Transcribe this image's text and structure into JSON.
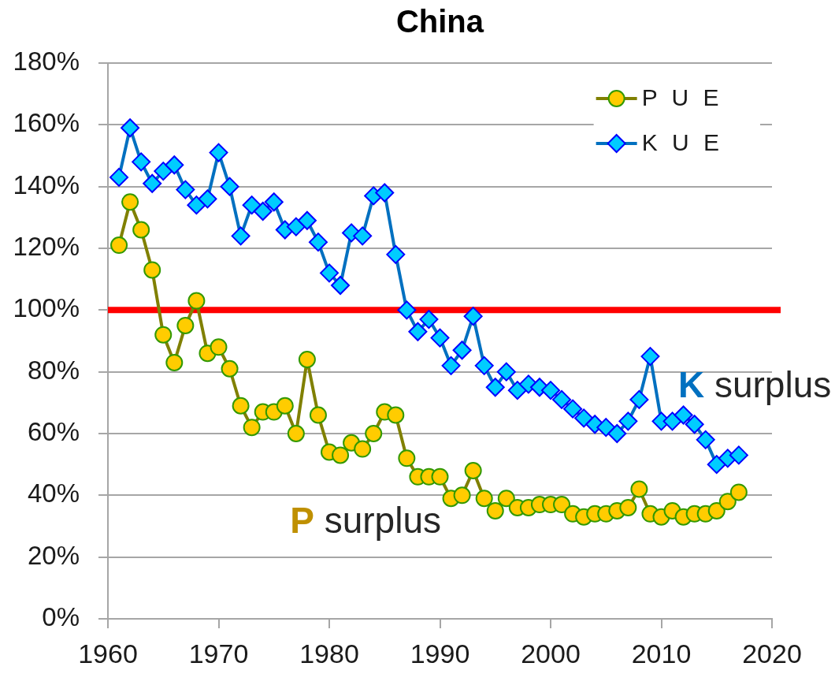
{
  "chart_data": {
    "type": "line",
    "title": "China",
    "x": [
      1961,
      1962,
      1963,
      1964,
      1965,
      1966,
      1967,
      1968,
      1969,
      1970,
      1971,
      1972,
      1973,
      1974,
      1975,
      1976,
      1977,
      1978,
      1979,
      1980,
      1981,
      1982,
      1983,
      1984,
      1985,
      1986,
      1987,
      1988,
      1989,
      1990,
      1991,
      1992,
      1993,
      1994,
      1995,
      1996,
      1997,
      1998,
      1999,
      2000,
      2001,
      2002,
      2003,
      2004,
      2005,
      2006,
      2007,
      2008,
      2009,
      2010,
      2011,
      2012,
      2013,
      2014,
      2015,
      2016,
      2017
    ],
    "series": [
      {
        "name": "P U E",
        "color": "#808000",
        "marker": "circle",
        "values": [
          121,
          135,
          126,
          113,
          92,
          83,
          95,
          103,
          86,
          88,
          81,
          69,
          62,
          67,
          67,
          69,
          60,
          84,
          66,
          54,
          53,
          57,
          55,
          60,
          67,
          66,
          52,
          46,
          46,
          46,
          39,
          40,
          48,
          39,
          35,
          39,
          36,
          36,
          37,
          37,
          37,
          34,
          33,
          34,
          34,
          35,
          36,
          42,
          34,
          33,
          35,
          33,
          34,
          34,
          35,
          38,
          41
        ]
      },
      {
        "name": "K U E",
        "color": "#0070c0",
        "marker": "diamond",
        "values": [
          143,
          159,
          148,
          141,
          145,
          147,
          139,
          134,
          136,
          151,
          140,
          124,
          134,
          132,
          135,
          126,
          127,
          129,
          122,
          112,
          108,
          125,
          124,
          137,
          138,
          118,
          100,
          93,
          97,
          91,
          82,
          87,
          98,
          82,
          75,
          80,
          74,
          76,
          75,
          74,
          71,
          68,
          65,
          63,
          62,
          60,
          64,
          71,
          85,
          64,
          64,
          66,
          63,
          58,
          50,
          52,
          53
        ]
      }
    ],
    "xlim": [
      1960,
      2020
    ],
    "xticks": [
      1960,
      1970,
      1980,
      1990,
      2000,
      2010,
      2020
    ],
    "ylim": [
      0,
      180
    ],
    "yticks": [
      {
        "value": 0,
        "label": "0%"
      },
      {
        "value": 20,
        "label": "20%"
      },
      {
        "value": 40,
        "label": "40%"
      },
      {
        "value": 60,
        "label": "60%"
      },
      {
        "value": 80,
        "label": "80%"
      },
      {
        "value": 100,
        "label": "100%"
      },
      {
        "value": 120,
        "label": "120%"
      },
      {
        "value": 140,
        "label": "140%"
      },
      {
        "value": 160,
        "label": "160%"
      },
      {
        "value": 180,
        "label": "180%"
      }
    ],
    "grid": "y",
    "legend": "top right",
    "ref_lines": [
      {
        "axis": "y",
        "value": 100,
        "color": "#ff0000"
      }
    ],
    "annotations": [
      "K surplus",
      "P surplus"
    ]
  }
}
